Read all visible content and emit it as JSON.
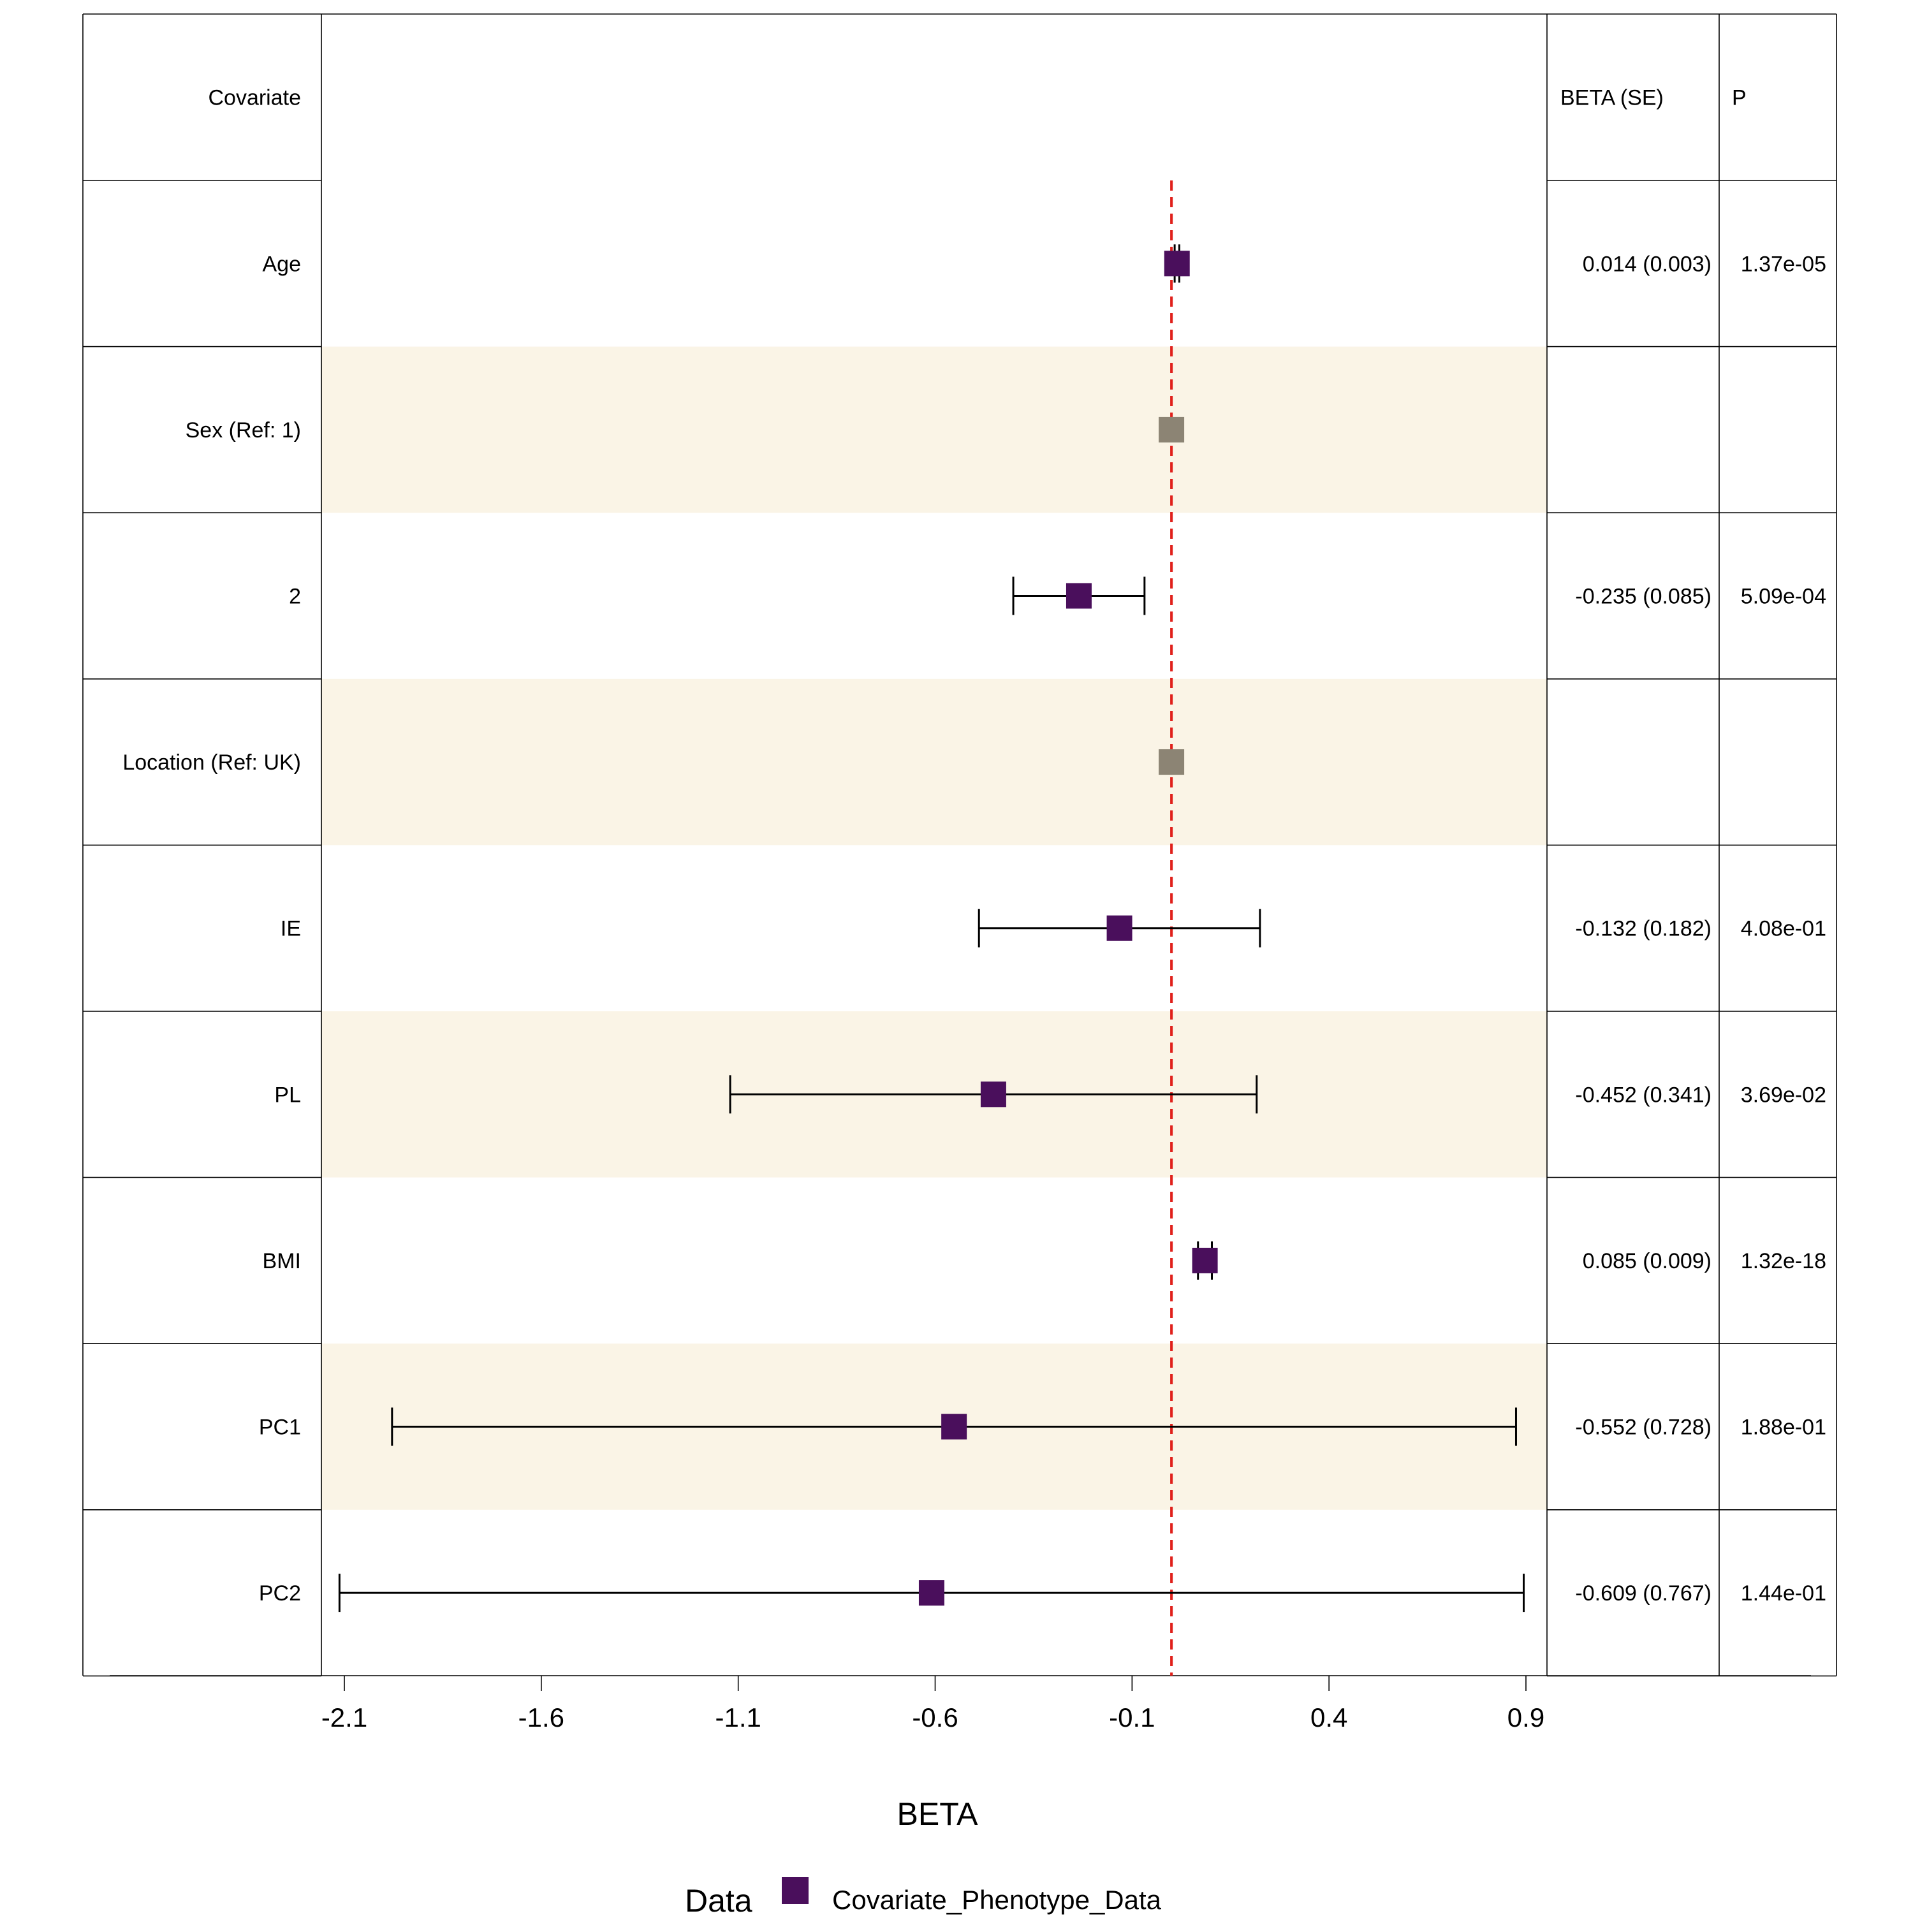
{
  "chart_data": {
    "type": "forest",
    "headers": {
      "covariate": "Covariate",
      "beta_se": "BETA (SE)",
      "p": "P"
    },
    "rows": [
      {
        "label": "Age",
        "beta": 0.014,
        "se": 0.003,
        "beta_se_text": "0.014 (0.003)",
        "p_text": "1.37e-05",
        "reference": false,
        "shaded": false
      },
      {
        "label": "Sex (Ref: 1)",
        "beta": 0,
        "se": null,
        "beta_se_text": "",
        "p_text": "",
        "reference": true,
        "shaded": true
      },
      {
        "label": "2",
        "beta": -0.235,
        "se": 0.085,
        "beta_se_text": "-0.235 (0.085)",
        "p_text": "5.09e-04",
        "reference": false,
        "shaded": false
      },
      {
        "label": "Location (Ref: UK)",
        "beta": 0,
        "se": null,
        "beta_se_text": "",
        "p_text": "",
        "reference": true,
        "shaded": true
      },
      {
        "label": "IE",
        "beta": -0.132,
        "se": 0.182,
        "beta_se_text": "-0.132 (0.182)",
        "p_text": "4.08e-01",
        "reference": false,
        "shaded": false
      },
      {
        "label": "PL",
        "beta": -0.452,
        "se": 0.341,
        "beta_se_text": "-0.452 (0.341)",
        "p_text": "3.69e-02",
        "reference": false,
        "shaded": true
      },
      {
        "label": "BMI",
        "beta": 0.085,
        "se": 0.009,
        "beta_se_text": "0.085 (0.009)",
        "p_text": "1.32e-18",
        "reference": false,
        "shaded": false
      },
      {
        "label": "PC1",
        "beta": -0.552,
        "se": 0.728,
        "beta_se_text": "-0.552 (0.728)",
        "p_text": "1.88e-01",
        "reference": false,
        "shaded": true
      },
      {
        "label": "PC2",
        "beta": -0.609,
        "se": 0.767,
        "beta_se_text": "-0.609 (0.767)",
        "p_text": "1.44e-01",
        "reference": false,
        "shaded": false
      }
    ],
    "ci_multiplier": 1.96,
    "reference_line": 0,
    "x_ticks": [
      -2.1,
      -1.6,
      -1.1,
      -0.6,
      -0.1,
      0.4,
      0.9
    ],
    "x_tick_labels": [
      "-2.1",
      "-1.6",
      "-1.1",
      "-0.6",
      "-0.1",
      "0.4",
      "0.9"
    ],
    "xlabel": "BETA",
    "xlim": [
      -2.16,
      0.97
    ],
    "legend": {
      "title": "Data",
      "entries": [
        {
          "name": "Covariate_Phenotype_Data",
          "color": "#4a0f5c"
        }
      ],
      "position": "bottom"
    },
    "colors": {
      "point": "#4a0f5c",
      "reference_point": "#8c8474",
      "shade": "#faf4e6",
      "reference_line": "#e0201b",
      "border": "#000000"
    }
  }
}
